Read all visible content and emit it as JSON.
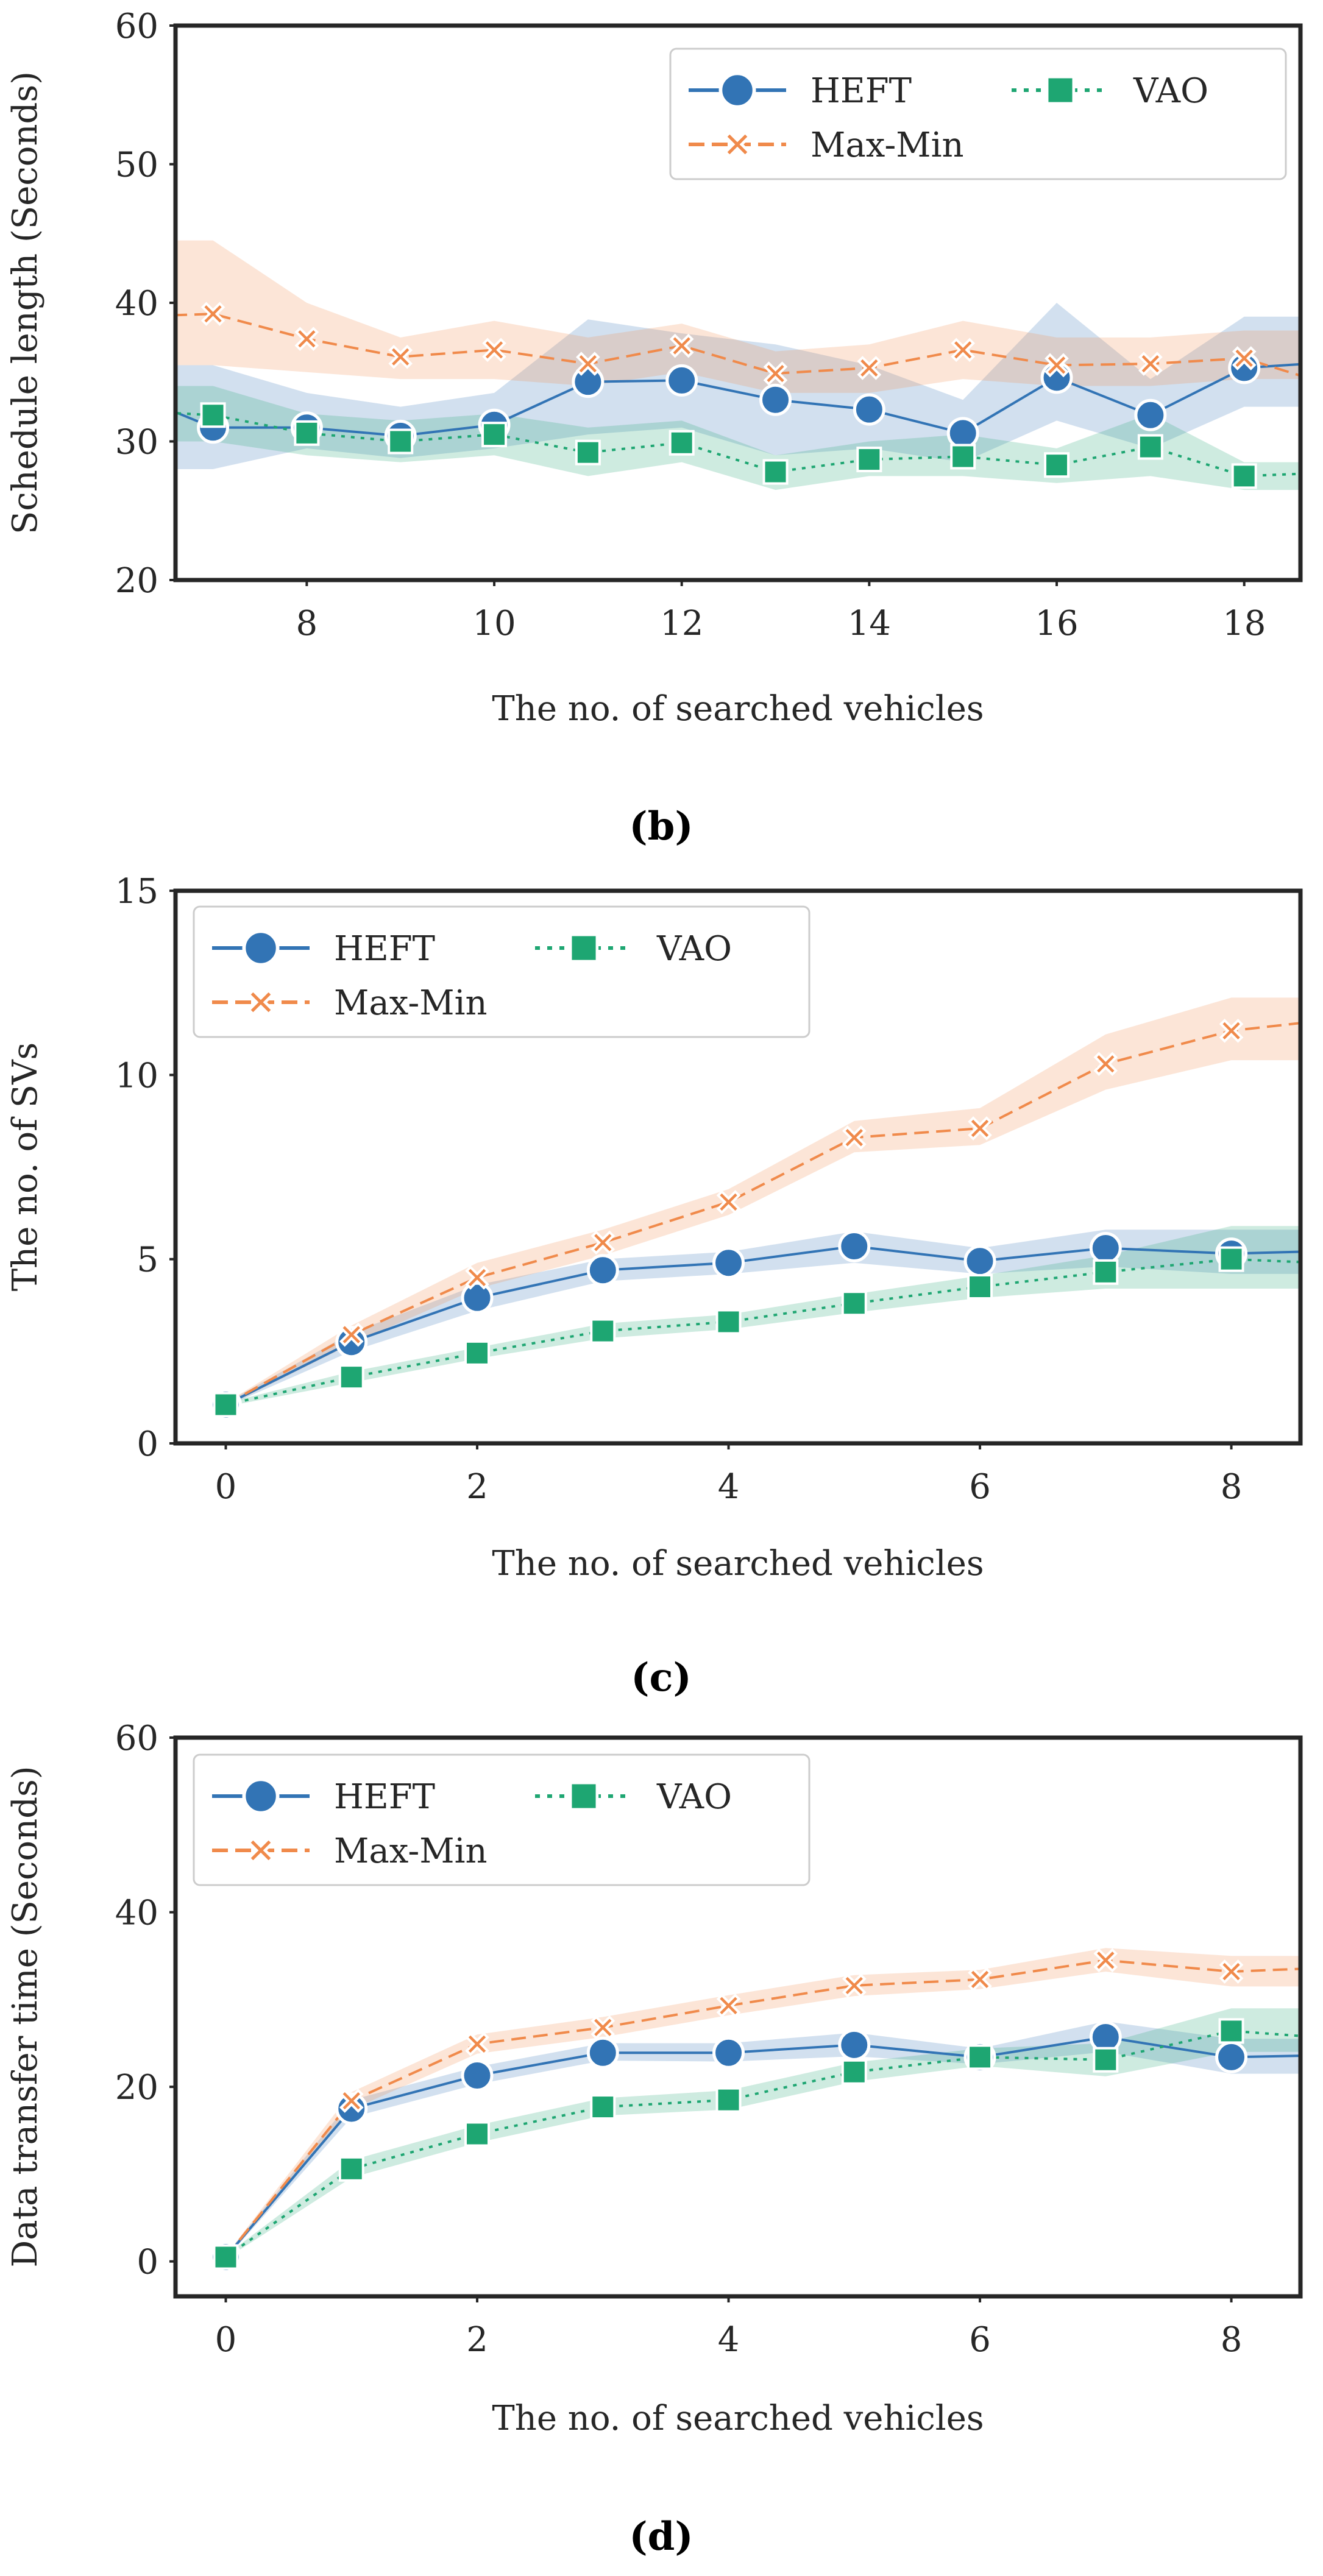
{
  "chart_data": [
    {
      "type": "line",
      "caption": "(b)",
      "xlabel": "The no. of searched vehicles",
      "ylabel": "Schedule length (Seconds)",
      "xlim": [
        6.6,
        18.6
      ],
      "ylim": [
        20,
        60
      ],
      "xticks": [
        8,
        10,
        12,
        14,
        16,
        18
      ],
      "yticks": [
        20,
        30,
        40,
        50,
        60
      ],
      "grid": false,
      "legend_position": "top-right",
      "x": [
        7,
        8,
        9,
        10,
        11,
        12,
        13,
        14,
        15,
        16,
        17,
        18
      ],
      "series": [
        {
          "name": "HEFT",
          "color": "#3274b5",
          "marker": "circle",
          "line_style": "solid",
          "values": [
            31.0,
            31.0,
            30.4,
            31.2,
            34.3,
            34.4,
            33.0,
            32.3,
            30.6,
            34.6,
            31.9,
            35.3
          ],
          "band_lower": [
            28.0,
            29.5,
            28.8,
            29.5,
            30.5,
            31.0,
            29.0,
            29.5,
            28.5,
            31.5,
            29.5,
            32.5
          ],
          "band_upper": [
            35.5,
            33.5,
            32.5,
            33.5,
            38.8,
            37.8,
            37.0,
            35.5,
            33.0,
            40.0,
            34.5,
            39.0
          ],
          "start_value": 33.5,
          "end_value": 35.8
        },
        {
          "name": "Max-Min",
          "color": "#f08a4b",
          "marker": "x",
          "line_style": "dashed",
          "values": [
            39.2,
            37.4,
            36.1,
            36.6,
            35.6,
            36.9,
            34.9,
            35.3,
            36.6,
            35.5,
            35.6,
            36.0
          ],
          "band_lower": [
            35.5,
            35.0,
            34.5,
            34.5,
            34.0,
            35.0,
            33.5,
            33.5,
            34.5,
            34.0,
            34.0,
            34.5
          ],
          "band_upper": [
            44.5,
            40.0,
            37.5,
            38.7,
            37.5,
            38.5,
            36.5,
            37.0,
            38.7,
            37.5,
            37.5,
            38.0
          ],
          "start_value": 39.0,
          "end_value": 33.7
        },
        {
          "name": "VAO",
          "color": "#1ea672",
          "marker": "square",
          "line_style": "dotted",
          "values": [
            31.9,
            30.6,
            30.0,
            30.5,
            29.2,
            29.9,
            27.8,
            28.7,
            28.9,
            28.3,
            29.6,
            27.5
          ],
          "band_lower": [
            30.0,
            29.0,
            28.5,
            29.0,
            27.5,
            28.5,
            26.5,
            27.5,
            27.5,
            27.0,
            27.5,
            26.5
          ],
          "band_upper": [
            34.0,
            32.0,
            31.5,
            32.0,
            31.0,
            31.5,
            29.0,
            30.0,
            30.5,
            29.5,
            32.0,
            28.5
          ],
          "start_value": 32.2,
          "end_value": 27.8
        }
      ]
    },
    {
      "type": "line",
      "caption": "(c)",
      "xlabel": "The no. of searched vehicles",
      "ylabel": "The no. of SVs",
      "xlim": [
        -0.4,
        8.55
      ],
      "ylim": [
        0,
        15
      ],
      "xticks": [
        0,
        2,
        4,
        6,
        8
      ],
      "yticks": [
        0,
        5,
        10,
        15
      ],
      "grid": false,
      "legend_position": "top-left",
      "x": [
        0,
        1,
        2,
        3,
        4,
        5,
        6,
        7,
        8
      ],
      "series": [
        {
          "name": "HEFT",
          "color": "#3274b5",
          "marker": "circle",
          "line_style": "solid",
          "values": [
            1.05,
            2.75,
            3.95,
            4.7,
            4.9,
            5.35,
            4.95,
            5.3,
            5.15
          ],
          "band_lower": [
            1.0,
            2.5,
            3.6,
            4.4,
            4.6,
            4.9,
            4.6,
            4.8,
            4.6
          ],
          "band_upper": [
            1.1,
            3.0,
            4.3,
            5.0,
            5.2,
            5.75,
            5.3,
            5.8,
            5.8
          ],
          "end_value": 5.25
        },
        {
          "name": "Max-Min",
          "color": "#f08a4b",
          "marker": "x",
          "line_style": "dashed",
          "values": [
            1.05,
            2.95,
            4.5,
            5.45,
            6.55,
            8.3,
            8.55,
            10.3,
            11.2
          ],
          "band_lower": [
            1.0,
            2.7,
            4.2,
            5.1,
            6.2,
            7.9,
            8.1,
            9.6,
            10.4
          ],
          "band_upper": [
            1.1,
            3.2,
            4.9,
            5.8,
            6.9,
            8.75,
            9.1,
            11.1,
            12.1
          ],
          "end_value": 11.6
        },
        {
          "name": "VAO",
          "color": "#1ea672",
          "marker": "square",
          "line_style": "dotted",
          "values": [
            1.05,
            1.8,
            2.45,
            3.05,
            3.3,
            3.8,
            4.25,
            4.65,
            5.0
          ],
          "band_lower": [
            1.0,
            1.65,
            2.3,
            2.85,
            3.1,
            3.55,
            3.95,
            4.2,
            4.2
          ],
          "band_upper": [
            1.1,
            1.95,
            2.6,
            3.25,
            3.5,
            4.05,
            4.55,
            5.1,
            5.9
          ],
          "end_value": 4.85
        }
      ]
    },
    {
      "type": "line",
      "caption": "(d)",
      "xlabel": "The no. of searched vehicles",
      "ylabel": "Data transfer time (Seconds)",
      "xlim": [
        -0.4,
        8.55
      ],
      "ylim": [
        -4,
        60
      ],
      "xticks": [
        0,
        2,
        4,
        6,
        8
      ],
      "yticks": [
        0,
        20,
        40,
        60
      ],
      "grid": false,
      "legend_position": "top-left",
      "x": [
        0,
        1,
        2,
        3,
        4,
        5,
        6,
        7,
        8
      ],
      "series": [
        {
          "name": "HEFT",
          "color": "#3274b5",
          "marker": "circle",
          "line_style": "solid",
          "values": [
            0.5,
            17.5,
            21.3,
            23.9,
            23.9,
            24.8,
            23.4,
            25.7,
            23.4
          ],
          "band_lower": [
            0.3,
            16.5,
            20.3,
            23.0,
            22.9,
            23.5,
            22.6,
            24.0,
            21.5
          ],
          "band_upper": [
            0.7,
            18.5,
            22.3,
            25.0,
            25.0,
            26.2,
            24.4,
            27.5,
            25.5
          ],
          "end_value": 23.7
        },
        {
          "name": "Max-Min",
          "color": "#f08a4b",
          "marker": "x",
          "line_style": "dashed",
          "values": [
            0.5,
            18.4,
            24.9,
            26.8,
            29.3,
            31.6,
            32.3,
            34.5,
            33.2
          ],
          "band_lower": [
            0.3,
            17.4,
            23.8,
            25.7,
            28.2,
            30.4,
            31.2,
            33.2,
            31.5
          ],
          "band_upper": [
            0.7,
            19.4,
            26.0,
            28.0,
            30.5,
            32.8,
            33.4,
            35.9,
            35.0
          ],
          "end_value": 33.8
        },
        {
          "name": "VAO",
          "color": "#1ea672",
          "marker": "square",
          "line_style": "dotted",
          "values": [
            0.5,
            10.6,
            14.6,
            17.7,
            18.5,
            21.7,
            23.4,
            23.1,
            26.4
          ],
          "band_lower": [
            0.3,
            9.6,
            13.6,
            16.7,
            17.4,
            20.6,
            22.4,
            21.2,
            24.0
          ],
          "band_upper": [
            0.7,
            11.6,
            15.6,
            18.7,
            19.6,
            22.8,
            24.4,
            25.0,
            29.0
          ],
          "end_value": 25.3
        }
      ]
    }
  ]
}
